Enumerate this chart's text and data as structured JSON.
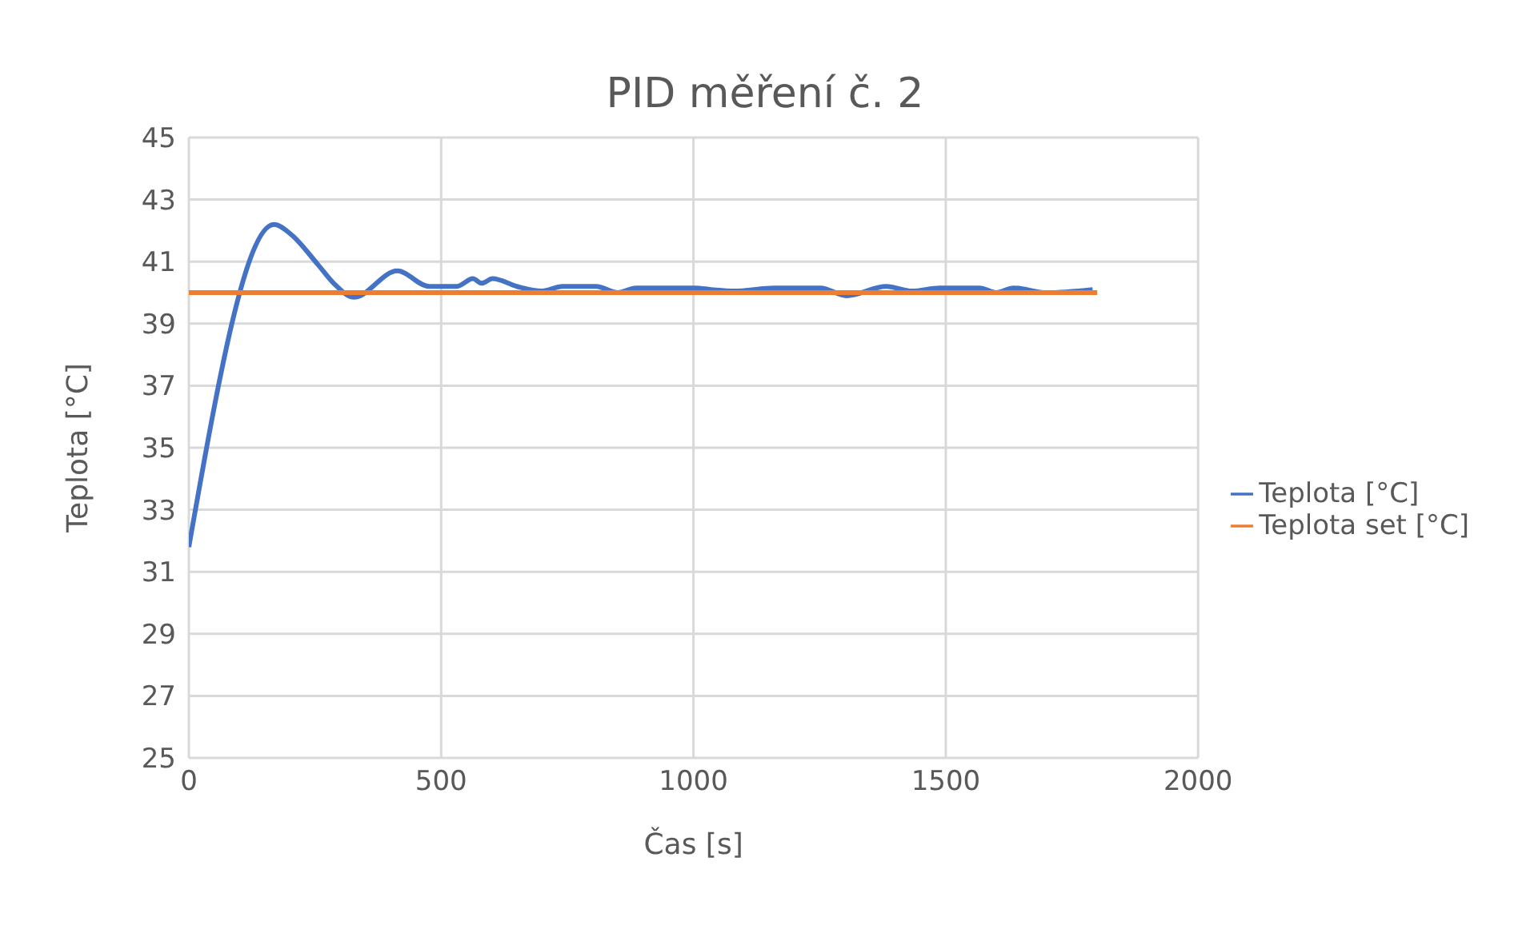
{
  "chart_data": {
    "type": "line",
    "title": "PID měření č. 2",
    "xlabel": "Čas [s]",
    "ylabel": "Teplota [°C]",
    "xlim": [
      0,
      2000
    ],
    "xticks": [
      0,
      500,
      1000,
      1500,
      2000
    ],
    "ylim": [
      25,
      45
    ],
    "yticks": [
      25,
      27,
      29,
      31,
      33,
      35,
      37,
      39,
      41,
      43,
      45
    ],
    "grid": true,
    "legend": "right",
    "marker": "none",
    "line_style": "solid",
    "series": [
      {
        "name": "Teplota [°C]",
        "color": "#4472c4",
        "x": [
          0,
          169,
          201,
          256,
          287,
          327,
          413,
          476,
          531,
          563,
          580,
          602,
          650,
          700,
          740,
          807,
          850,
          886,
          1004,
          1035,
          1080,
          1161,
          1252,
          1303,
          1382,
          1433,
          1488,
          1567,
          1600,
          1634,
          1700,
          1791
        ],
        "values": [
          31.8,
          42.2,
          41.9,
          40.9,
          40.3,
          39.85,
          40.7,
          40.2,
          40.2,
          40.45,
          40.3,
          40.45,
          40.2,
          40.05,
          40.2,
          40.2,
          40.0,
          40.15,
          40.15,
          40.1,
          40.05,
          40.15,
          40.15,
          39.9,
          40.2,
          40.05,
          40.15,
          40.15,
          40.0,
          40.15,
          40.0,
          40.1
        ]
      },
      {
        "name": "Teplota set [°C]",
        "color": "#ed7d31",
        "x": [
          0,
          1800
        ],
        "values": [
          40,
          40
        ]
      }
    ]
  }
}
